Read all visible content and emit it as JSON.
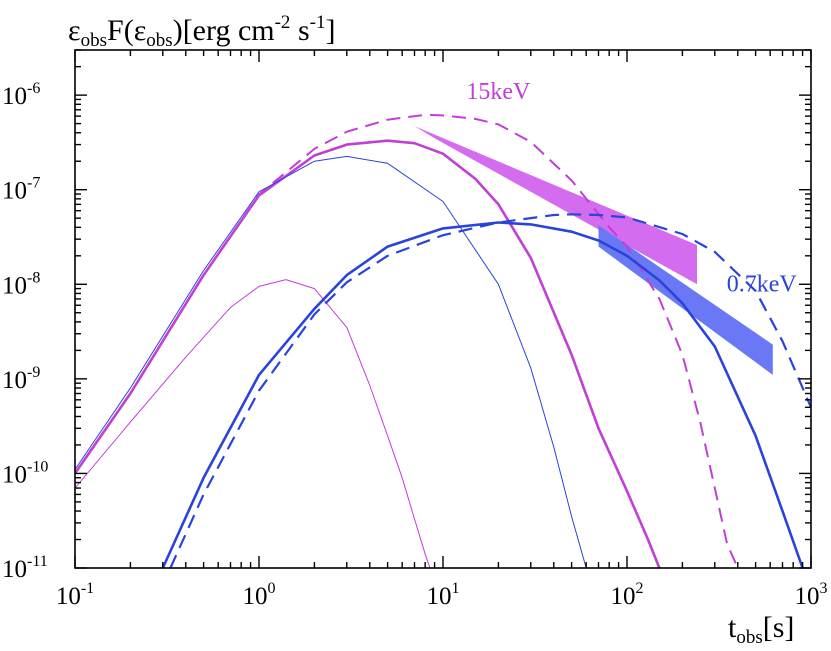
{
  "chart_data": {
    "type": "line",
    "xscale": "log",
    "yscale": "log",
    "xlim": [
      0.1,
      1000
    ],
    "ylim": [
      1e-11,
      3e-06
    ],
    "xlabel": {
      "main": "t",
      "sub": "obs",
      "tail": "[s]"
    },
    "ylabel": {
      "p1": "ε",
      "s1": "obs",
      "p2": "F(ε",
      "s2": "obs",
      "p3": ")[erg cm",
      "e1": "-2",
      "p4": " s",
      "e2": "-1",
      "p5": "]"
    },
    "xticks": [
      {
        "value": 0.1,
        "base": "10",
        "exp": "-1"
      },
      {
        "value": 1,
        "base": "10",
        "exp": "0"
      },
      {
        "value": 10,
        "base": "10",
        "exp": "1"
      },
      {
        "value": 100,
        "base": "10",
        "exp": "2"
      },
      {
        "value": 1000,
        "base": "10",
        "exp": "3"
      }
    ],
    "yticks": [
      {
        "value": 1e-11,
        "base": "10",
        "exp": "-11"
      },
      {
        "value": 1e-10,
        "base": "10",
        "exp": "-10"
      },
      {
        "value": 1e-09,
        "base": "10",
        "exp": "-9"
      },
      {
        "value": 1e-08,
        "base": "10",
        "exp": "-8"
      },
      {
        "value": 1e-07,
        "base": "10",
        "exp": "-7"
      },
      {
        "value": 1e-06,
        "base": "10",
        "exp": "-6"
      }
    ],
    "colors": {
      "magenta": "#c23fd6",
      "blue": "#2a44db",
      "magenta_band": "#d46cf0",
      "blue_band": "#6a78f6"
    },
    "series": [
      {
        "name": "15keV dashed",
        "color": "magenta",
        "style": "dashed",
        "width": 2,
        "x": [
          0.1,
          0.2,
          0.5,
          1,
          2,
          3,
          5,
          8,
          10,
          15,
          20,
          30,
          50,
          80,
          100,
          150,
          200,
          250,
          300,
          350,
          400
        ],
        "y": [
          1e-10,
          7e-10,
          1.25e-08,
          8.9e-08,
          2.7e-07,
          4.1e-07,
          5.5e-07,
          6.2e-07,
          6.1e-07,
          5.6e-07,
          4.9e-07,
          3.2e-07,
          1.25e-07,
          4e-08,
          2.5e-08,
          7e-09,
          1.8e-09,
          3.5e-10,
          7e-11,
          1.8e-11,
          1e-11
        ]
      },
      {
        "name": "15keV solid thick",
        "color": "magenta",
        "style": "solid",
        "width": 2.6,
        "x": [
          0.1,
          0.2,
          0.5,
          1,
          2,
          3,
          5,
          7,
          10,
          15,
          20,
          30,
          50,
          70,
          100,
          130,
          150
        ],
        "y": [
          1e-10,
          7e-10,
          1.25e-08,
          8.7e-08,
          2.3e-07,
          3e-07,
          3.3e-07,
          3.1e-07,
          2.4e-07,
          1.3e-07,
          7e-08,
          1.9e-08,
          1.8e-09,
          3e-10,
          6.5e-11,
          2e-11,
          1e-11
        ]
      },
      {
        "name": "15keV solid thin",
        "color": "magenta",
        "style": "solid",
        "width": 1,
        "x": [
          0.1,
          0.2,
          0.4,
          0.7,
          1,
          1.4,
          2,
          3,
          4,
          5,
          6,
          7,
          8,
          8.5
        ],
        "y": [
          7e-11,
          3.5e-10,
          1.7e-09,
          5.7e-09,
          9.5e-09,
          1.12e-08,
          9e-09,
          3.5e-09,
          8.5e-10,
          2.5e-10,
          9e-11,
          3.3e-11,
          1.4e-11,
          1e-11
        ]
      },
      {
        "name": "0.7keV thin",
        "color": "blue",
        "style": "solid",
        "width": 1,
        "x": [
          0.1,
          0.2,
          0.5,
          1,
          2,
          3,
          5,
          10,
          20,
          30,
          40,
          50,
          60
        ],
        "y": [
          1.1e-10,
          8e-10,
          1.4e-08,
          9.5e-08,
          2e-07,
          2.25e-07,
          1.9e-07,
          7.5e-08,
          1e-08,
          1.3e-09,
          1.9e-10,
          3.5e-11,
          1e-11
        ]
      },
      {
        "name": "0.7keV solid thick",
        "color": "blue",
        "style": "solid",
        "width": 2.6,
        "x": [
          0.3,
          0.5,
          1,
          2,
          3,
          5,
          10,
          20,
          30,
          50,
          70,
          100,
          150,
          200,
          300,
          500,
          700,
          900
        ],
        "y": [
          1e-11,
          9e-11,
          1.1e-09,
          5.5e-09,
          1.25e-08,
          2.5e-08,
          3.9e-08,
          4.5e-08,
          4.3e-08,
          3.6e-08,
          2.9e-08,
          2e-08,
          1.1e-08,
          6.3e-09,
          2.2e-09,
          2.5e-10,
          4e-11,
          1e-11
        ]
      },
      {
        "name": "0.7keV dashed",
        "color": "blue",
        "style": "dashed",
        "width": 2.2,
        "x": [
          0.33,
          0.5,
          1,
          2,
          3,
          5,
          10,
          20,
          40,
          50,
          70,
          100,
          200,
          300,
          500,
          700,
          1000
        ],
        "y": [
          1e-11,
          6e-11,
          7.5e-10,
          4.8e-09,
          1.05e-08,
          2e-08,
          3.3e-08,
          4.5e-08,
          5.4e-08,
          5.5e-08,
          5.4e-08,
          5.1e-08,
          3.4e-08,
          2.2e-08,
          8.5e-09,
          2.5e-09,
          5e-10
        ]
      }
    ],
    "bands": [
      {
        "name": "15keV observed band",
        "color": "magenta_band",
        "upper": [
          [
            7,
            4.7e-07
          ],
          [
            240,
            2.6e-08
          ]
        ],
        "lower": [
          [
            9,
            3.5e-07
          ],
          [
            240,
            1e-08
          ]
        ]
      },
      {
        "name": "0.7keV observed band",
        "color": "blue_band",
        "upper": [
          [
            70,
            4.2e-08
          ],
          [
            620,
            2.3e-09
          ]
        ],
        "lower": [
          [
            70,
            2.5e-08
          ],
          [
            620,
            1.1e-09
          ]
        ]
      }
    ],
    "annotations": [
      {
        "text": "15keV",
        "color": "magenta",
        "x": 20,
        "y": 1.1e-06,
        "anchor": "middle"
      },
      {
        "text": "0.7keV",
        "color": "blue",
        "x": 540,
        "y": 1.02e-08,
        "anchor": "middle"
      }
    ]
  }
}
